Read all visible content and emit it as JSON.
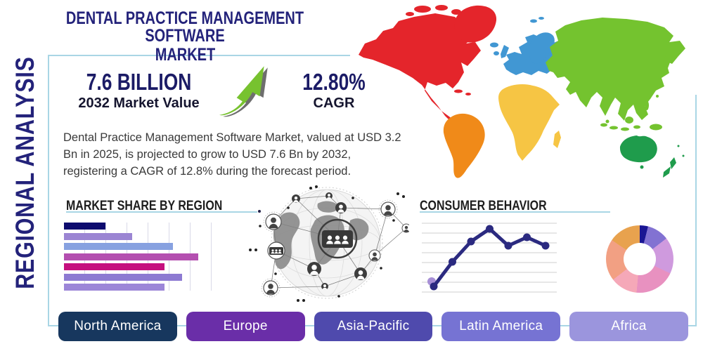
{
  "page": {
    "title_line1": "DENTAL PRACTICE MANAGEMENT SOFTWARE",
    "title_line2": "MARKET"
  },
  "sidebar": {
    "label": "REGIONAL ANALYSIS"
  },
  "stats": {
    "market_value": {
      "value": "7.6 BILLION",
      "label": "2032 Market Value"
    },
    "cagr": {
      "value": "12.80%",
      "label": "CAGR"
    }
  },
  "description_lines": [
    "Dental Practice Management Software Market, valued at USD 3.2",
    "Bn in 2025, is projected to grow to USD 7.6 Bn by 2032,",
    "registering a CAGR of 12.8% during the forecast period."
  ],
  "sections": {
    "market_share": {
      "heading": "MARKET SHARE BY REGION"
    },
    "consumer_behavior": {
      "heading": "CONSUMER BEHAVIOR"
    }
  },
  "chart_data": [
    {
      "type": "bar",
      "title": "MARKET SHARE BY REGION",
      "orientation": "horizontal",
      "values_pct": [
        28,
        46,
        74,
        91,
        68,
        80,
        68
      ],
      "xlim": [
        0,
        100
      ],
      "grid": "vertical",
      "colors": [
        "#0D0B6E",
        "#9B85D3",
        "#87A1E0",
        "#B44FB0",
        "#C50F7E",
        "#8D7AD2",
        "#9C86D8"
      ]
    },
    {
      "type": "line",
      "title": "CONSUMER BEHAVIOR",
      "x": [
        1,
        2,
        3,
        4,
        5,
        6,
        7
      ],
      "values": [
        9,
        44,
        73,
        91,
        67,
        79,
        67
      ],
      "ylim": [
        0,
        100
      ],
      "grid": "horizontal",
      "line_color": "#2B2A80",
      "start_marker_color": "#A78FD6"
    },
    {
      "type": "donut",
      "segments": [
        {
          "value": 4,
          "color": "#1A1694"
        },
        {
          "value": 10.5,
          "color": "#8272D2"
        },
        {
          "value": 17.5,
          "color": "#CF9ADE"
        },
        {
          "value": 19.5,
          "color": "#E891C0"
        },
        {
          "value": 13,
          "color": "#F5A8B8"
        },
        {
          "value": 20,
          "color": "#F2A083"
        },
        {
          "value": 15.5,
          "color": "#E8A24E"
        }
      ]
    }
  ],
  "map": {
    "regions": [
      {
        "name": "North America",
        "color": "#E4252B"
      },
      {
        "name": "South America",
        "color": "#F08A19"
      },
      {
        "name": "Europe",
        "color": "#4197D3"
      },
      {
        "name": "Africa",
        "color": "#F6C544"
      },
      {
        "name": "Asia",
        "color": "#74C32F"
      },
      {
        "name": "Australia",
        "color": "#1F9C4C"
      }
    ]
  },
  "region_buttons": [
    {
      "label": "North America",
      "color": "#17375E"
    },
    {
      "label": "Europe",
      "color": "#6A2EA8"
    },
    {
      "label": "Asia-Pacific",
      "color": "#4F4AAD"
    },
    {
      "label": "Latin America",
      "color": "#7673D3"
    },
    {
      "label": "Africa",
      "color": "#9B95DD"
    }
  ],
  "icons": {
    "growth_arrow": "curved-up-right-arrow",
    "globe_network": "globe-with-people-network"
  },
  "colors": {
    "accent_border": "#A9D6E5",
    "title_navy": "#23227A"
  }
}
